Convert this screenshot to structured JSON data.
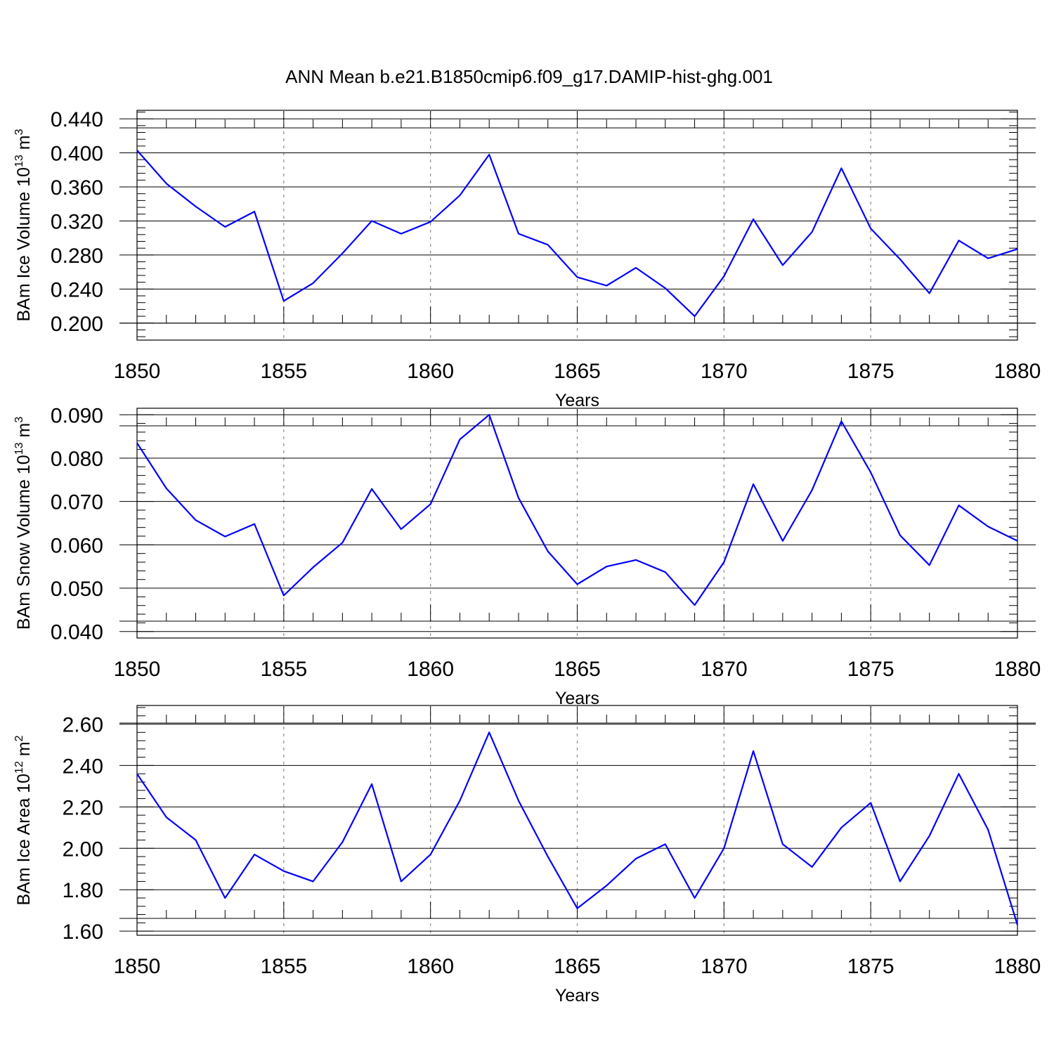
{
  "title": "ANN Mean b.e21.B1850cmip6.f09_g17.DAMIP-hist-ghg.001",
  "colors": {
    "line": "#0000ff",
    "grid": "#8a8a8a",
    "axis": "#000000"
  },
  "chart_data": [
    {
      "type": "line",
      "title": "",
      "xlabel": "Years",
      "ylabel": "BAm Ice Volume 10",
      "ylabel_sup": "13",
      "ylabel_unit": " m",
      "ylabel_unit_sup": "3",
      "xlim": [
        1850,
        1880
      ],
      "ylim": [
        0.18,
        0.45
      ],
      "xticks": [
        "1850",
        "1855",
        "1860",
        "1865",
        "1870",
        "1875",
        "1880"
      ],
      "yticks": [
        "0.200",
        "0.240",
        "0.280",
        "0.320",
        "0.360",
        "0.400",
        "0.440"
      ],
      "grid": "vertical dashed",
      "x": [
        1850,
        1851,
        1852,
        1853,
        1854,
        1855,
        1856,
        1857,
        1858,
        1859,
        1860,
        1861,
        1862,
        1863,
        1864,
        1865,
        1866,
        1867,
        1868,
        1869,
        1870,
        1871,
        1872,
        1873,
        1874,
        1875,
        1876,
        1877,
        1878,
        1879,
        1880
      ],
      "values": [
        0.403,
        0.364,
        0.337,
        0.313,
        0.331,
        0.226,
        0.247,
        0.282,
        0.32,
        0.305,
        0.319,
        0.35,
        0.398,
        0.305,
        0.292,
        0.254,
        0.244,
        0.265,
        0.241,
        0.208,
        0.255,
        0.322,
        0.268,
        0.307,
        0.382,
        0.311,
        0.275,
        0.235,
        0.297,
        0.276,
        0.287
      ]
    },
    {
      "type": "line",
      "title": "",
      "xlabel": "Years",
      "ylabel": "BAm Snow Volume 10",
      "ylabel_sup": "13",
      "ylabel_unit": " m",
      "ylabel_unit_sup": "3",
      "xlim": [
        1850,
        1880
      ],
      "ylim": [
        0.0385,
        0.0915
      ],
      "xticks": [
        "1850",
        "1855",
        "1860",
        "1865",
        "1870",
        "1875",
        "1880"
      ],
      "yticks": [
        "0.040",
        "0.050",
        "0.060",
        "0.070",
        "0.080",
        "0.090"
      ],
      "grid": "vertical dashed",
      "x": [
        1850,
        1851,
        1852,
        1853,
        1854,
        1855,
        1856,
        1857,
        1858,
        1859,
        1860,
        1861,
        1862,
        1863,
        1864,
        1865,
        1866,
        1867,
        1868,
        1869,
        1870,
        1871,
        1872,
        1873,
        1874,
        1875,
        1876,
        1877,
        1878,
        1879,
        1880
      ],
      "values": [
        0.0835,
        0.073,
        0.0657,
        0.0619,
        0.0648,
        0.0483,
        0.0548,
        0.0605,
        0.0729,
        0.0636,
        0.0694,
        0.0843,
        0.09,
        0.0708,
        0.0585,
        0.0509,
        0.055,
        0.0565,
        0.0537,
        0.0461,
        0.056,
        0.074,
        0.0609,
        0.0726,
        0.0885,
        0.0767,
        0.0622,
        0.0553,
        0.0691,
        0.0642,
        0.0609
      ]
    },
    {
      "type": "line",
      "title": "",
      "xlabel": "Years",
      "ylabel": "BAm Ice Area 10",
      "ylabel_sup": "12",
      "ylabel_unit": " m",
      "ylabel_unit_sup": "2",
      "xlim": [
        1850,
        1880
      ],
      "ylim": [
        1.58,
        2.69
      ],
      "xticks": [
        "1850",
        "1855",
        "1860",
        "1865",
        "1870",
        "1875",
        "1880"
      ],
      "yticks": [
        "1.60",
        "1.80",
        "2.00",
        "2.20",
        "2.40",
        "2.60"
      ],
      "grid": "vertical dashed",
      "x": [
        1850,
        1851,
        1852,
        1853,
        1854,
        1855,
        1856,
        1857,
        1858,
        1859,
        1860,
        1861,
        1862,
        1863,
        1864,
        1865,
        1866,
        1867,
        1868,
        1869,
        1870,
        1871,
        1872,
        1873,
        1874,
        1875,
        1876,
        1877,
        1878,
        1879,
        1880
      ],
      "values": [
        2.36,
        2.15,
        2.04,
        1.76,
        1.97,
        1.89,
        1.84,
        2.03,
        2.31,
        1.84,
        1.97,
        2.23,
        2.56,
        2.23,
        1.96,
        1.71,
        1.82,
        1.95,
        2.02,
        1.76,
        2.0,
        2.47,
        2.02,
        1.91,
        2.1,
        2.22,
        1.84,
        2.06,
        2.36,
        2.09,
        1.63
      ]
    }
  ]
}
